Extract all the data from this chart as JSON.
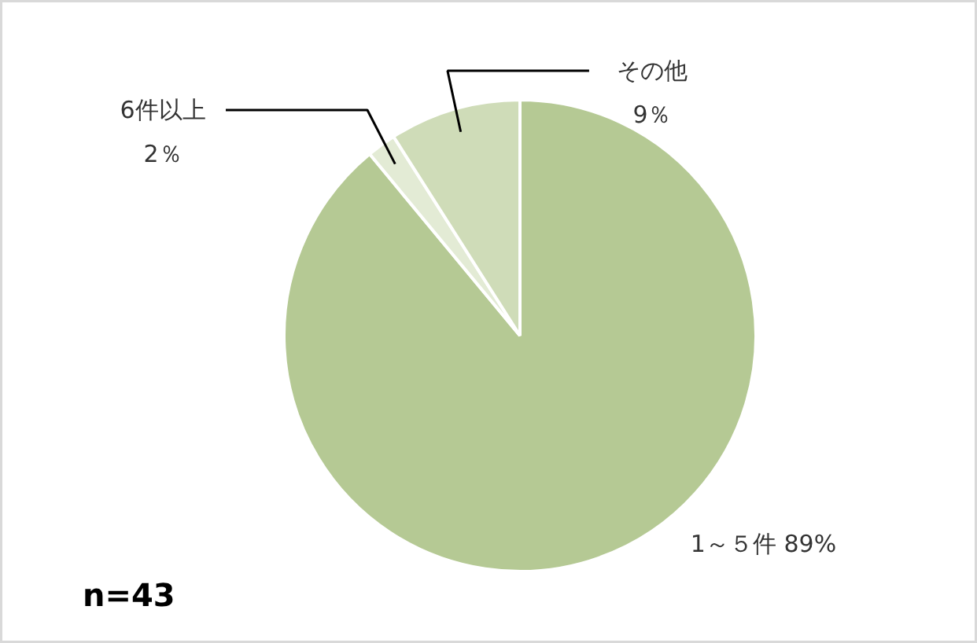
{
  "chart_data": {
    "type": "pie",
    "categories": [
      "1～５件",
      "6件以上",
      "その他"
    ],
    "values": [
      89,
      2,
      9
    ],
    "colors": [
      "#b5c994",
      "#e3ebd5",
      "#cfdcb8"
    ],
    "value_labels": [
      "89%",
      "2％",
      "9％"
    ],
    "annotations": [
      "n=43"
    ]
  }
}
